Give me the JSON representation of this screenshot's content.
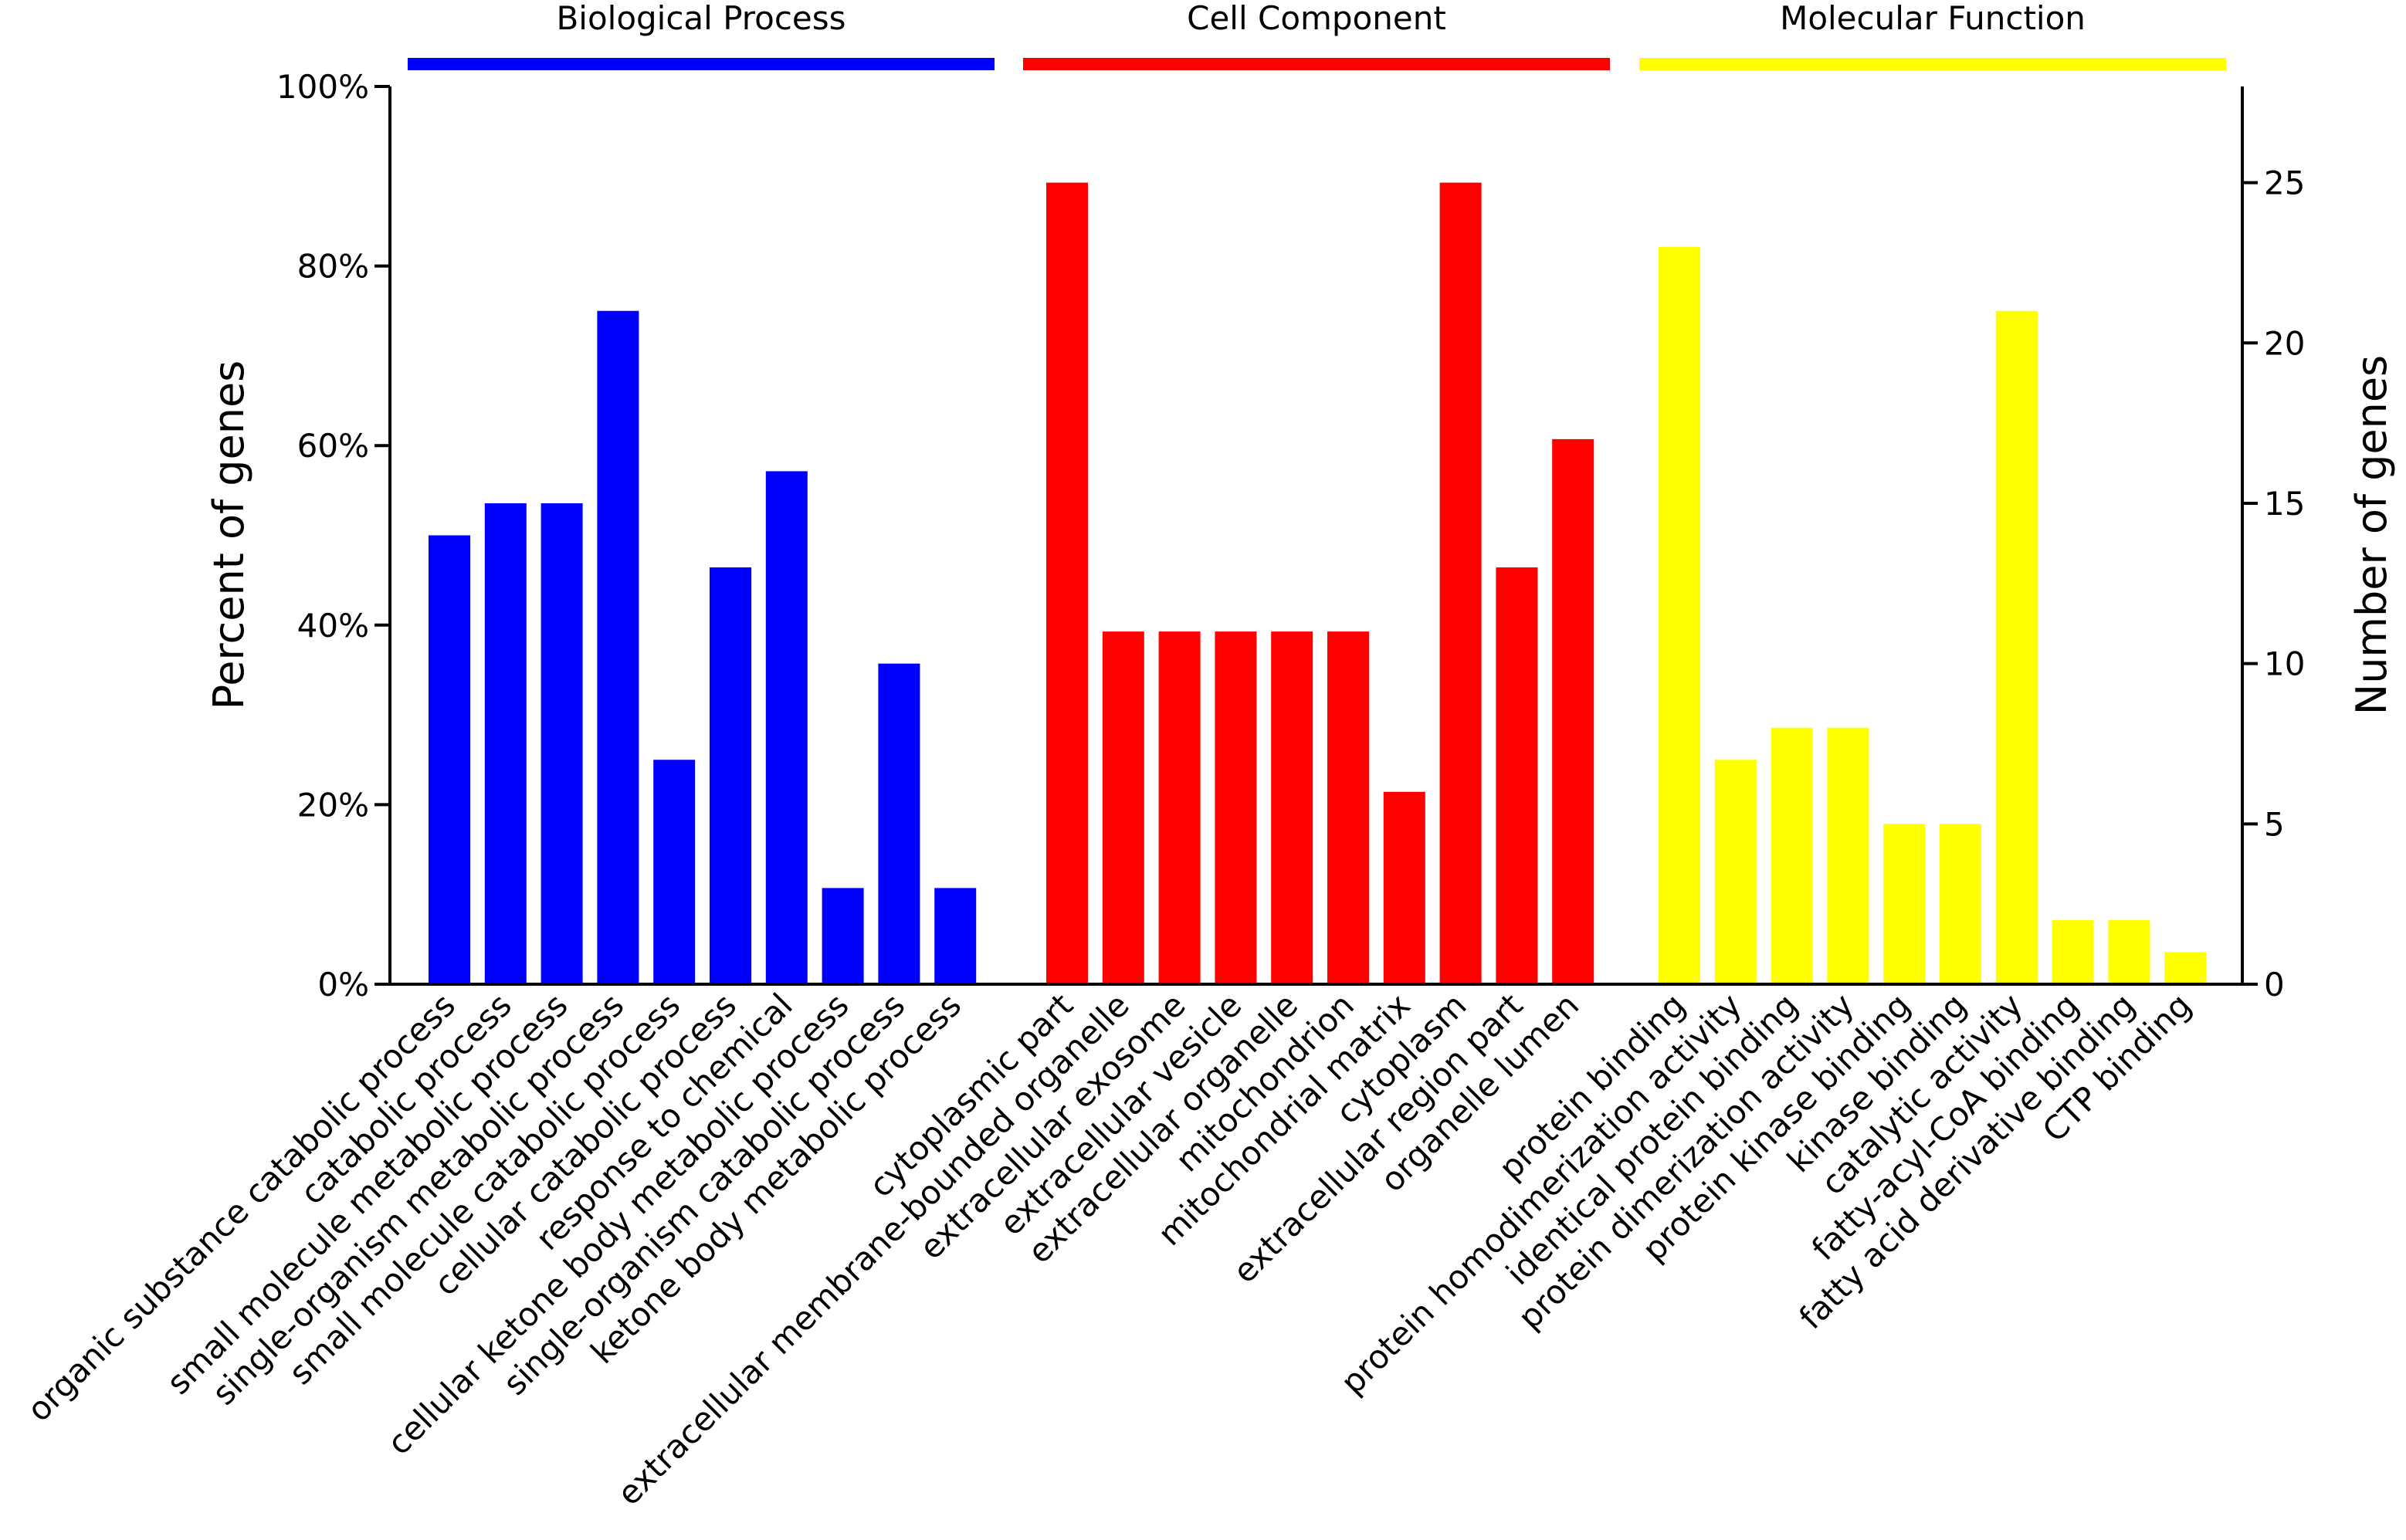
{
  "chart_data": {
    "type": "bar",
    "ylabel": "Percent of genes",
    "y2label": "Number of genes",
    "ylim": [
      0,
      100
    ],
    "y2lim": [
      0,
      28
    ],
    "yticks": [
      "0%",
      "20%",
      "40%",
      "60%",
      "80%",
      "100%"
    ],
    "y2ticks": [
      "0",
      "5",
      "10",
      "15",
      "20",
      "25"
    ],
    "grid": false,
    "groups": [
      {
        "name": "Biological Process",
        "color": "#0000ff",
        "categories": [
          "organic substance catabolic process",
          "catabolic process",
          "small molecule metabolic process",
          "single-organism metabolic process",
          "small molecule catabolic process",
          "cellular catabolic process",
          "response to chemical",
          "cellular ketone body metabolic process",
          "single-organism catabolic process",
          "ketone body metabolic process"
        ],
        "values": [
          14,
          15,
          15,
          21,
          7,
          13,
          16,
          3,
          10,
          3
        ]
      },
      {
        "name": "Cell Component",
        "color": "#ff0000",
        "categories": [
          "cytoplasmic part",
          "extracellular membrane-bounded organelle",
          "extracellular exosome",
          "extracellular vesicle",
          "extracellular organelle",
          "mitochondrion",
          "mitochondrial matrix",
          "cytoplasm",
          "extracellular region part",
          "organelle lumen"
        ],
        "values": [
          25,
          11,
          11,
          11,
          11,
          11,
          6,
          25,
          13,
          17
        ]
      },
      {
        "name": "Molecular Function",
        "color": "#ffff00",
        "categories": [
          "protein binding",
          "protein homodimerization activity",
          "identical protein binding",
          "protein dimerization activity",
          "protein kinase binding",
          "kinase binding",
          "catalytic activity",
          "fatty-acyl-CoA binding",
          "fatty acid derivative binding",
          "CTP binding"
        ],
        "values": [
          23,
          7,
          8,
          8,
          5,
          5,
          21,
          2,
          2,
          1
        ]
      }
    ]
  }
}
